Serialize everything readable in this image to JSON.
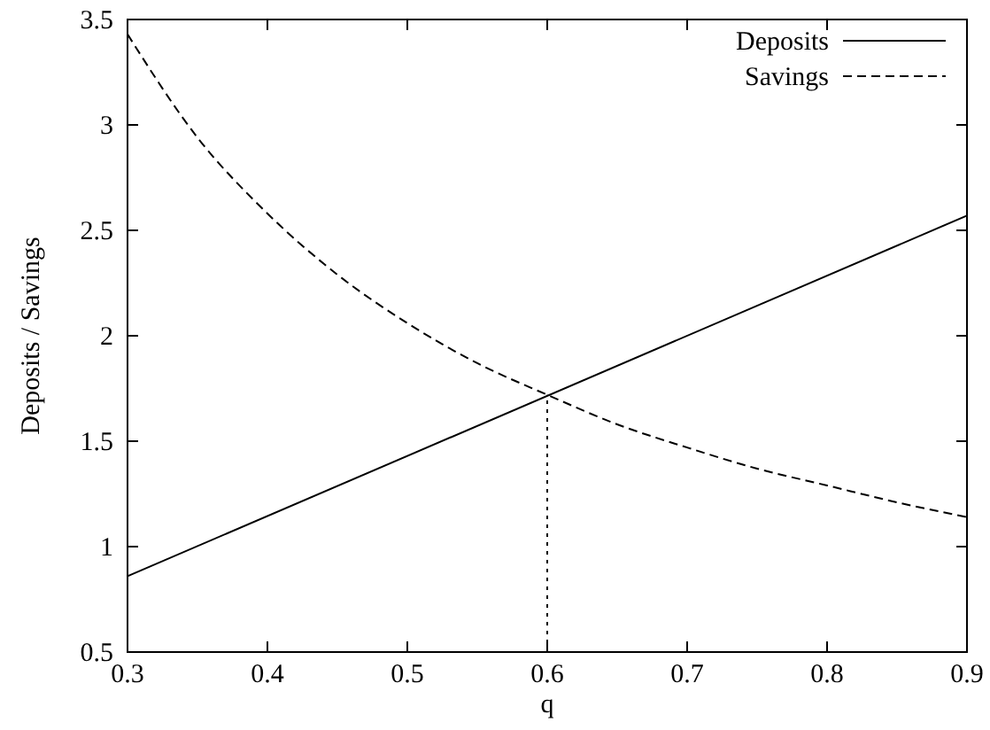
{
  "chart_data": {
    "type": "line",
    "xlabel": "q",
    "ylabel": "Deposits / Savings",
    "xlim": [
      0.3,
      0.9
    ],
    "ylim": [
      0.5,
      3.5
    ],
    "xticks": [
      0.3,
      0.4,
      0.5,
      0.6,
      0.7,
      0.8,
      0.9
    ],
    "yticks": [
      0.5,
      1,
      1.5,
      2,
      2.5,
      3,
      3.5
    ],
    "legend": "top right",
    "grid": false,
    "series": [
      {
        "name": "Deposits",
        "color": "#000000",
        "line_style": "solid",
        "x": [
          0.3,
          0.9
        ],
        "values": [
          0.86,
          2.57
        ]
      },
      {
        "name": "Savings",
        "color": "#000000",
        "line_style": "dashed",
        "x": [
          0.3,
          0.35,
          0.4,
          0.45,
          0.5,
          0.55,
          0.6,
          0.65,
          0.7,
          0.75,
          0.8,
          0.85,
          0.9
        ],
        "values": [
          3.43,
          2.94,
          2.58,
          2.29,
          2.06,
          1.87,
          1.72,
          1.58,
          1.47,
          1.37,
          1.29,
          1.21,
          1.14
        ]
      },
      {
        "color": "#000000",
        "line_style": "dotted",
        "x": [
          0.6,
          0.6
        ],
        "values": [
          0.5,
          1.72
        ]
      }
    ]
  }
}
